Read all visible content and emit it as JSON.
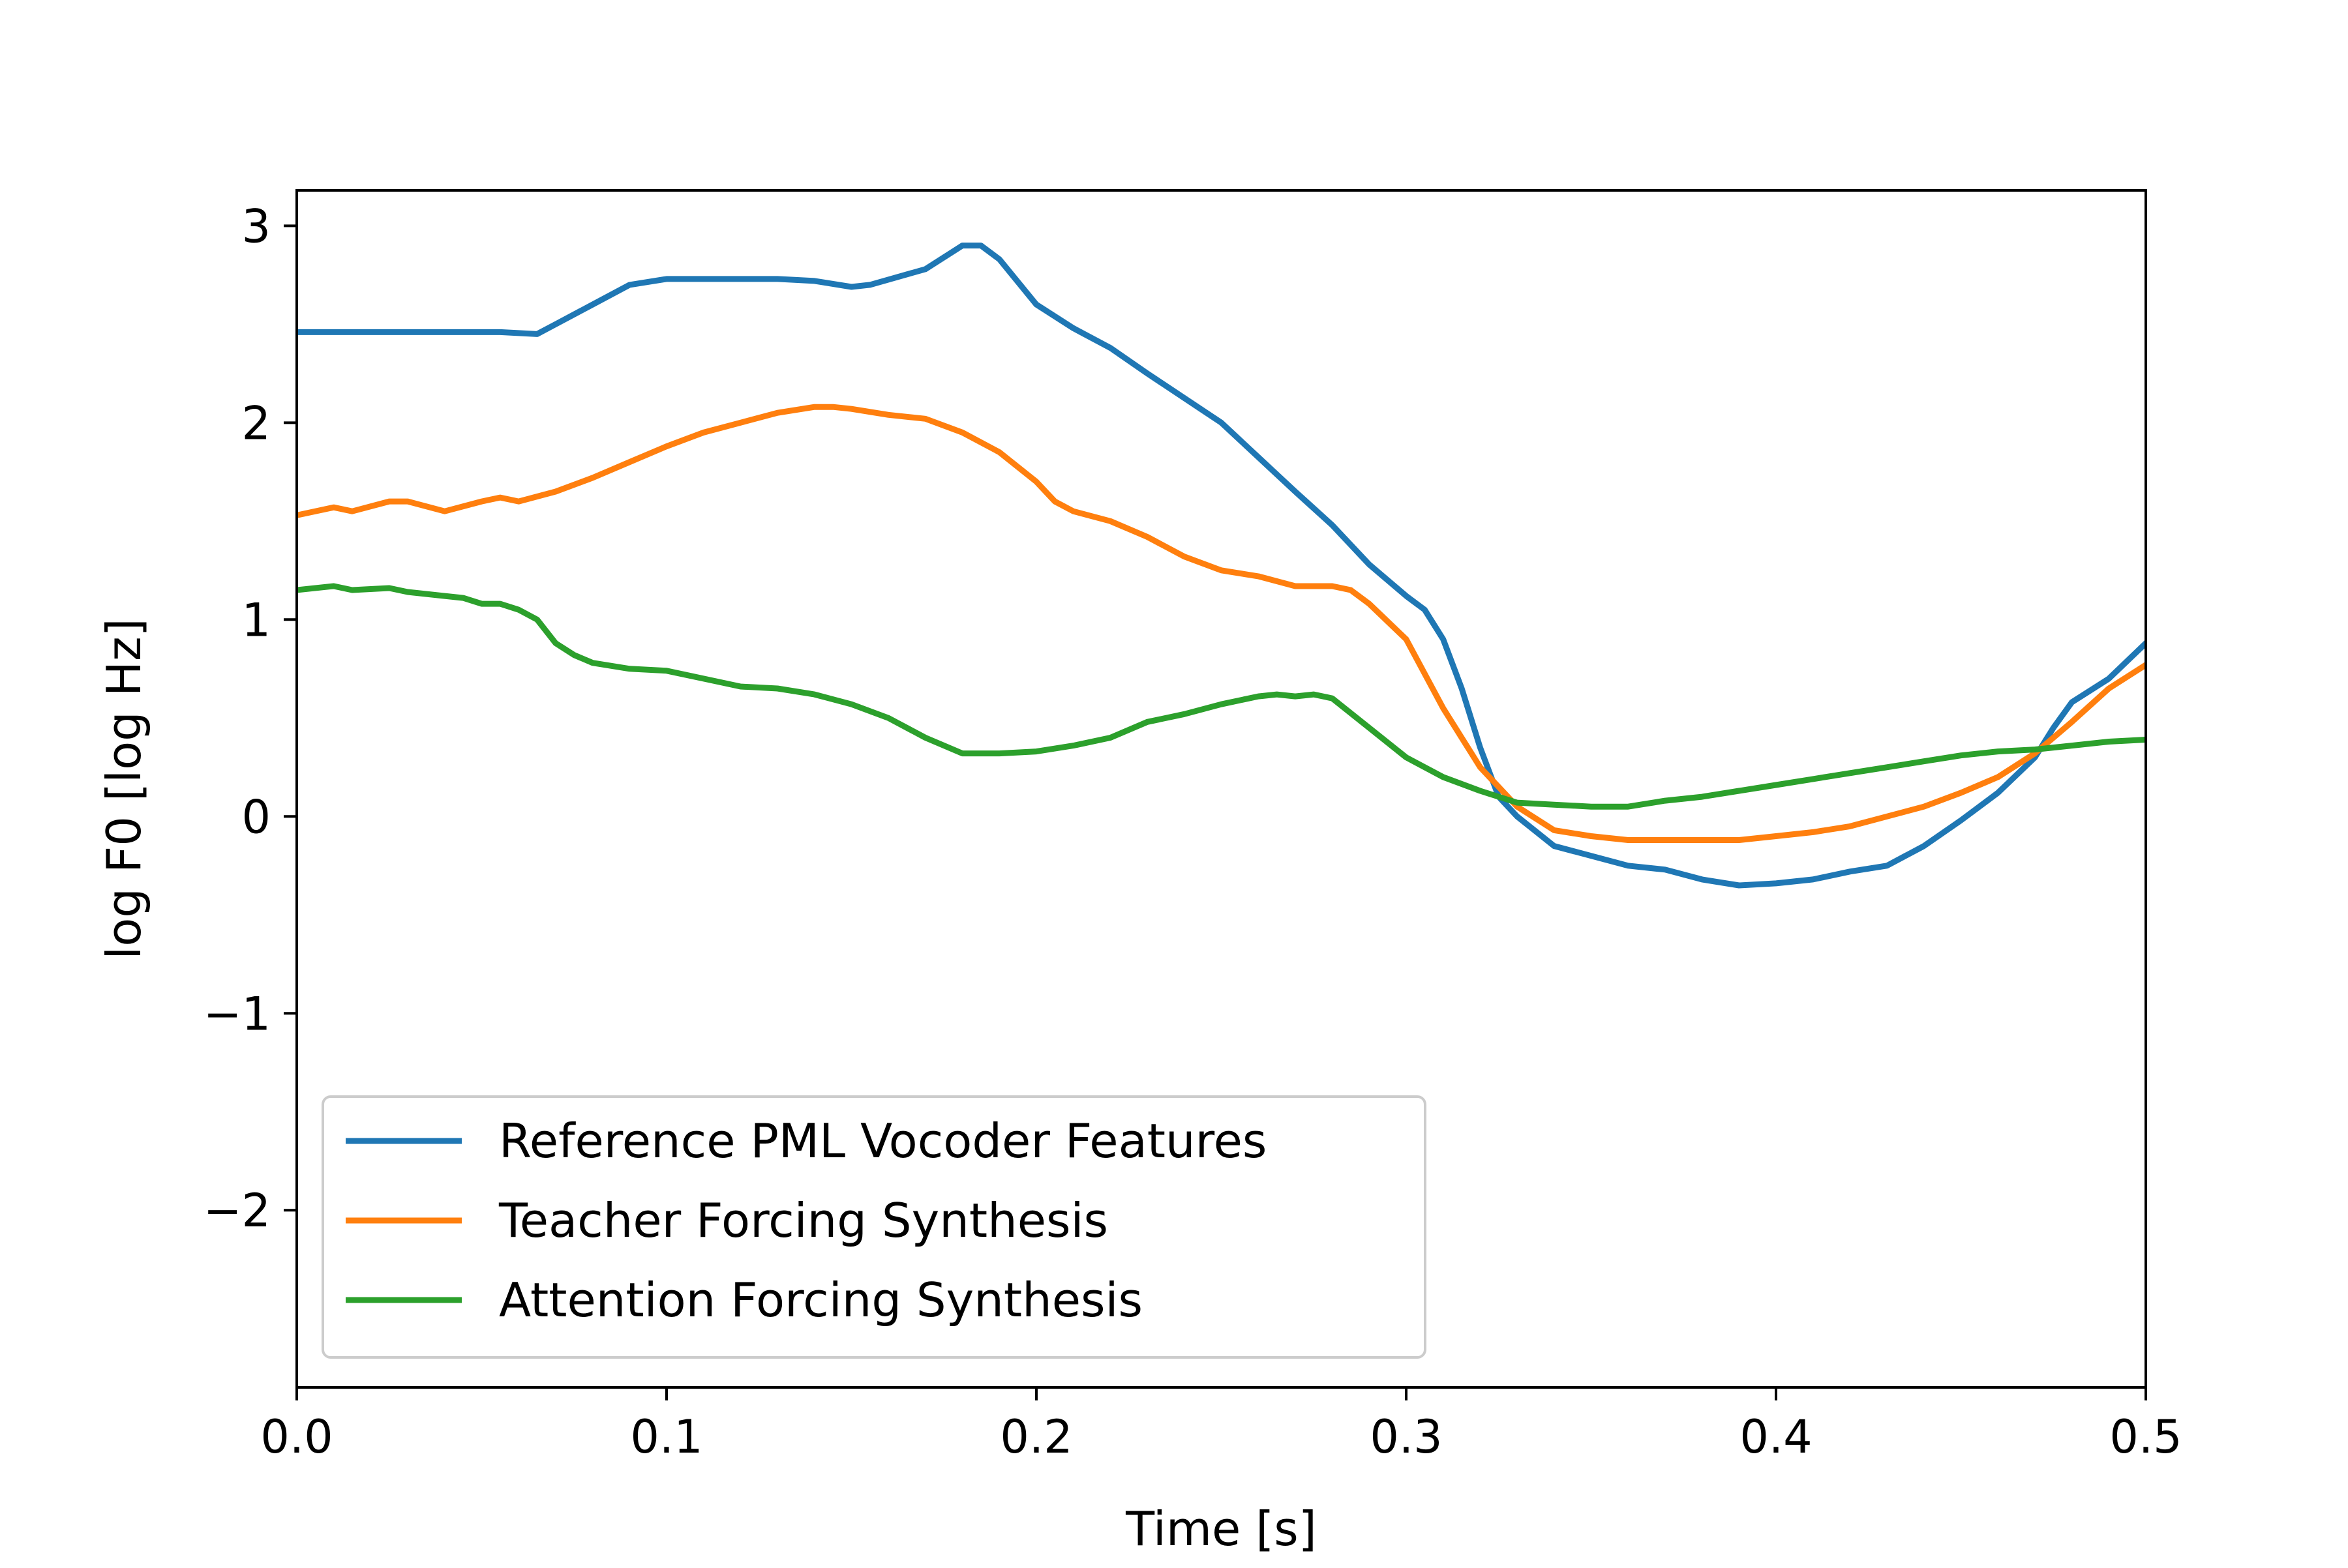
{
  "chart_data": {
    "type": "line",
    "xlabel": "Time [s]",
    "ylabel": "log F0 [log Hz]",
    "xlim": [
      0.0,
      0.5
    ],
    "ylim": [
      -2.9,
      3.18
    ],
    "xticks": [
      0.0,
      0.1,
      0.2,
      0.3,
      0.4,
      0.5
    ],
    "xtick_labels": [
      "0.0",
      "0.1",
      "0.2",
      "0.3",
      "0.4",
      "0.5"
    ],
    "yticks": [
      3,
      2,
      1,
      0,
      -1,
      -2
    ],
    "ytick_labels": [
      "3",
      "2",
      "1",
      "0",
      "−1",
      "−2"
    ],
    "grid": false,
    "legend_position": "bottom-left",
    "series": [
      {
        "name": "Reference PML Vocoder Features",
        "color": "#1f77b4",
        "x": [
          0.0,
          0.02,
          0.04,
          0.055,
          0.065,
          0.07,
          0.08,
          0.09,
          0.1,
          0.11,
          0.12,
          0.13,
          0.14,
          0.15,
          0.155,
          0.17,
          0.18,
          0.185,
          0.19,
          0.2,
          0.21,
          0.22,
          0.23,
          0.25,
          0.27,
          0.28,
          0.29,
          0.3,
          0.305,
          0.31,
          0.315,
          0.32,
          0.325,
          0.33,
          0.34,
          0.35,
          0.36,
          0.37,
          0.38,
          0.39,
          0.4,
          0.41,
          0.42,
          0.43,
          0.44,
          0.45,
          0.46,
          0.47,
          0.475,
          0.48,
          0.49,
          0.5
        ],
        "y": [
          2.46,
          2.46,
          2.46,
          2.46,
          2.45,
          2.5,
          2.6,
          2.7,
          2.73,
          2.73,
          2.73,
          2.73,
          2.72,
          2.69,
          2.7,
          2.78,
          2.9,
          2.9,
          2.83,
          2.6,
          2.48,
          2.38,
          2.25,
          2.0,
          1.65,
          1.48,
          1.28,
          1.12,
          1.05,
          0.9,
          0.65,
          0.35,
          0.1,
          0.0,
          -0.15,
          -0.2,
          -0.25,
          -0.27,
          -0.32,
          -0.35,
          -0.34,
          -0.32,
          -0.28,
          -0.25,
          -0.15,
          -0.02,
          0.12,
          0.3,
          0.45,
          0.58,
          0.7,
          0.88
        ]
      },
      {
        "name": "Teacher Forcing Synthesis",
        "color": "#ff7f0e",
        "x": [
          0.0,
          0.01,
          0.015,
          0.025,
          0.03,
          0.04,
          0.05,
          0.055,
          0.06,
          0.07,
          0.08,
          0.09,
          0.1,
          0.11,
          0.12,
          0.13,
          0.14,
          0.145,
          0.15,
          0.16,
          0.17,
          0.18,
          0.19,
          0.2,
          0.205,
          0.21,
          0.22,
          0.23,
          0.24,
          0.25,
          0.26,
          0.27,
          0.28,
          0.285,
          0.29,
          0.3,
          0.31,
          0.32,
          0.33,
          0.34,
          0.35,
          0.36,
          0.37,
          0.38,
          0.39,
          0.4,
          0.41,
          0.42,
          0.43,
          0.44,
          0.45,
          0.46,
          0.47,
          0.48,
          0.49,
          0.5
        ],
        "y": [
          1.53,
          1.57,
          1.55,
          1.6,
          1.6,
          1.55,
          1.6,
          1.62,
          1.6,
          1.65,
          1.72,
          1.8,
          1.88,
          1.95,
          2.0,
          2.05,
          2.08,
          2.08,
          2.07,
          2.04,
          2.02,
          1.95,
          1.85,
          1.7,
          1.6,
          1.55,
          1.5,
          1.42,
          1.32,
          1.25,
          1.22,
          1.17,
          1.17,
          1.15,
          1.08,
          0.9,
          0.55,
          0.25,
          0.05,
          -0.07,
          -0.1,
          -0.12,
          -0.12,
          -0.12,
          -0.12,
          -0.1,
          -0.08,
          -0.05,
          0.0,
          0.05,
          0.12,
          0.2,
          0.32,
          0.48,
          0.65,
          0.77
        ]
      },
      {
        "name": "Attention Forcing Synthesis",
        "color": "#2ca02c",
        "x": [
          0.0,
          0.01,
          0.015,
          0.025,
          0.03,
          0.04,
          0.045,
          0.05,
          0.055,
          0.06,
          0.065,
          0.07,
          0.075,
          0.08,
          0.09,
          0.1,
          0.11,
          0.12,
          0.13,
          0.14,
          0.15,
          0.16,
          0.17,
          0.18,
          0.19,
          0.2,
          0.21,
          0.22,
          0.23,
          0.24,
          0.25,
          0.26,
          0.265,
          0.27,
          0.275,
          0.28,
          0.29,
          0.3,
          0.31,
          0.32,
          0.33,
          0.34,
          0.35,
          0.36,
          0.37,
          0.38,
          0.39,
          0.4,
          0.41,
          0.42,
          0.43,
          0.44,
          0.45,
          0.46,
          0.47,
          0.48,
          0.49,
          0.5
        ],
        "y": [
          1.15,
          1.17,
          1.15,
          1.16,
          1.14,
          1.12,
          1.11,
          1.08,
          1.08,
          1.05,
          1.0,
          0.88,
          0.82,
          0.78,
          0.75,
          0.74,
          0.7,
          0.66,
          0.65,
          0.62,
          0.57,
          0.5,
          0.4,
          0.32,
          0.32,
          0.33,
          0.36,
          0.4,
          0.48,
          0.52,
          0.57,
          0.61,
          0.62,
          0.61,
          0.62,
          0.6,
          0.45,
          0.3,
          0.2,
          0.13,
          0.07,
          0.06,
          0.05,
          0.05,
          0.08,
          0.1,
          0.13,
          0.16,
          0.19,
          0.22,
          0.25,
          0.28,
          0.31,
          0.33,
          0.34,
          0.36,
          0.38,
          0.39
        ]
      }
    ]
  }
}
